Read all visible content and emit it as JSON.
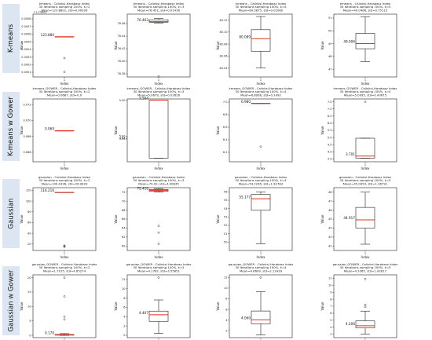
{
  "rows": [
    {
      "label": "K-means"
    },
    {
      "label": "K-means w Gower"
    },
    {
      "label": "Gaussian"
    },
    {
      "label": "Gaussian w Gower"
    }
  ],
  "chart_data": [
    {
      "type": "box",
      "row": 0,
      "col": 0,
      "title": [
        "kmeans - Calinksi-Harabasz Index",
        "30 iterations sampling 100%, k=2",
        "Mean=123.8801, std=0.00026"
      ],
      "offset_label": "+1.238e2",
      "xlabel": "Index",
      "ylabel": "Value",
      "x_tick": "1",
      "ylim": [
        123.88008,
        123.88058
      ],
      "ticks": [
        "0.0008",
        "0.0007",
        "0.0006",
        "0.0005",
        "0.0004",
        "0.0003",
        "0.0002",
        "0.0001"
      ],
      "box": {
        "q1": 123.8804,
        "median": 123.8804,
        "q3": 123.8804,
        "whisker_low": 123.8804,
        "whisker_high": 123.8804
      },
      "outliers": [
        123.88023,
        123.88012
      ],
      "median_label": "123.880"
    },
    {
      "type": "box",
      "row": 0,
      "col": 1,
      "title": [
        "kmeans - Calinksi-Harabasz Index",
        "30 iterations sampling 100%, k=3",
        "Mean=76.451, std=0.01436"
      ],
      "xlabel": "Index",
      "ylabel": "Value",
      "x_tick": "1",
      "ylim": [
        76.375,
        76.475
      ],
      "ticks": [
        "76.46",
        "76.44",
        "76.42",
        "76.40",
        "76.38"
      ],
      "box": {
        "q1": 76.462,
        "median": 76.463,
        "q3": 76.466,
        "whisker_low": 76.461,
        "whisker_high": 76.468
      },
      "outliers": [
        76.376
      ],
      "median_label": "76.463"
    },
    {
      "type": "box",
      "row": 0,
      "col": 2,
      "title": [
        "kmeans - Calinksi-Harabasz Index",
        "30 iterations sampling 100%, k=4",
        "Mean=80.0875, std=0.02080"
      ],
      "xlabel": "Index",
      "ylabel": "Value",
      "x_tick": "1",
      "ylim": [
        80.025,
        80.13
      ],
      "ticks": [
        "80.12",
        "80.10",
        "80.08",
        "80.06",
        "80.04"
      ],
      "box": {
        "q1": 80.068,
        "median": 80.089,
        "q3": 80.104,
        "whisker_low": 80.04,
        "whisker_high": 80.126
      },
      "outliers": [],
      "median_label": "80.089"
    },
    {
      "type": "box",
      "row": 0,
      "col": 3,
      "title": [
        "kmeans - Calinksi-Harabasz Index",
        "30 iterations sampling 100%, k=5",
        "Mean=49.0466, std=0.75115"
      ],
      "xlabel": "Index",
      "ylabel": "Value",
      "x_tick": "1",
      "ylim": [
        46.4,
        51.3
      ],
      "ticks": [
        "51",
        "50",
        "49",
        "48",
        "47"
      ],
      "box": {
        "q1": 48.6,
        "median": 49.006,
        "q3": 49.8,
        "whisker_low": 47.6,
        "whisker_high": 51.1
      },
      "outliers": [],
      "median_label": "49.006"
    },
    {
      "type": "box",
      "row": 1,
      "col": 0,
      "title": [
        "kmeans_GOWER - Calinksi-Harabasz Index",
        "30 iterations sampling 100%, k=2",
        "Mean=0.0687, std=0.0"
      ],
      "xlabel": "Index",
      "ylabel": "Value",
      "x_tick": "1",
      "ylim": [
        0.0648,
        0.0727
      ],
      "ticks": [
        "0.072",
        "0.070",
        "0.068",
        "0.066"
      ],
      "box": {
        "q1": 0.0687,
        "median": 0.0687,
        "q3": 0.0687,
        "whisker_low": 0.0687,
        "whisker_high": 0.0687
      },
      "outliers": [],
      "median_label": "0.069"
    },
    {
      "type": "box",
      "row": 1,
      "col": 1,
      "title": [
        "kmeans_GOWER - Calinksi-Harabasz Index",
        "30 iterations sampling 100%, k=3",
        "Mean=5.0679, std=0.02626"
      ],
      "xlabel": "Index",
      "ylabel": "Value",
      "x_tick": "1",
      "ylim": [
        4.64,
        5.52
      ],
      "ticks": [
        "5.50",
        "5.00",
        "4.97",
        "4.96"
      ],
      "box": {
        "q1": 4.69,
        "median": 5.504,
        "q3": 5.504,
        "whisker_low": 4.69,
        "whisker_high": 5.504
      },
      "outliers": [],
      "median_label": "5.504"
    },
    {
      "type": "box",
      "row": 1,
      "col": 2,
      "title": [
        "kmeans_GOWER - Calinksi-Harabasz Index",
        "30 iterations sampling 100%, k=4",
        "Mean=6.8996, std=0.1492"
      ],
      "xlabel": "Index",
      "ylabel": "Value",
      "x_tick": "1",
      "ylim": [
        6.05,
        7.05
      ],
      "ticks": [
        "7.0",
        "6.8",
        "6.6",
        "6.4",
        "6.2"
      ],
      "box": {
        "q1": 6.98,
        "median": 6.98,
        "q3": 6.98,
        "whisker_low": 6.98,
        "whisker_high": 6.98
      },
      "outliers": [
        6.29
      ],
      "median_label": "6.980"
    },
    {
      "type": "box",
      "row": 1,
      "col": 3,
      "title": [
        "kmeans_GOWER - Calinksi-Harabasz Index",
        "30 iterations sampling 100%, k=5",
        "Mean=5.0995, std=0.43675"
      ],
      "xlabel": "Index",
      "ylabel": "Value",
      "x_tick": "1",
      "ylim": [
        3.3,
        7.7
      ],
      "ticks": [
        "7.5",
        "7.0",
        "6.5",
        "6.0",
        "5.5",
        "5.0",
        "4.5",
        "4.0",
        "3.5"
      ],
      "box": {
        "q1": 3.55,
        "median": 3.701,
        "q3": 4.95,
        "whisker_low": 3.55,
        "whisker_high": 4.95
      },
      "outliers": [
        7.5
      ],
      "median_label": "3.701"
    },
    {
      "type": "box",
      "row": 2,
      "col": 0,
      "title": [
        "gaussian - Calinksi-Harabasz Index",
        "30 iterations sampling 100%, k=2",
        "Mean=109.0436, std=26.0629"
      ],
      "xlabel": "Index",
      "ylabel": "Value",
      "x_tick": "1",
      "ylim": [
        8,
        125
      ],
      "ticks": [
        "120",
        "100",
        "80",
        "60",
        "40",
        "20"
      ],
      "box": {
        "q1": 116.216,
        "median": 116.216,
        "q3": 116.216,
        "whisker_low": 116.216,
        "whisker_high": 116.216
      },
      "outliers": [
        17,
        16,
        15
      ],
      "median_label": "116.216"
    },
    {
      "type": "box",
      "row": 2,
      "col": 1,
      "title": [
        "gaussian - Calinksi-Harabasz Index",
        "30 iterations sampling 100%, k=3",
        "Mean=70.93, std=4.00835"
      ],
      "xlabel": "Index",
      "ylabel": "Value",
      "x_tick": "1",
      "ylim": [
        59,
        73
      ],
      "ticks": [
        "72",
        "70",
        "68",
        "66",
        "64",
        "62",
        "60"
      ],
      "box": {
        "q1": 72.2,
        "median": 72.41,
        "q3": 72.6,
        "whisker_low": 72.0,
        "whisker_high": 72.8
      },
      "outliers": [
        64.5,
        63,
        60.5
      ],
      "median_label": "72.410"
    },
    {
      "type": "box",
      "row": 2,
      "col": 2,
      "title": [
        "gaussian - Calinksi-Harabasz Index",
        "30 iterations sampling 100%, k=4",
        "Mean=54.2265, std=1.92783"
      ],
      "xlabel": "Index",
      "ylabel": "Value",
      "x_tick": "1",
      "ylim": [
        49,
        56.5
      ],
      "ticks": [
        "56",
        "55",
        "54",
        "53",
        "52",
        "51",
        "50"
      ],
      "box": {
        "q1": 53.8,
        "median": 55.177,
        "q3": 55.7,
        "whisker_low": 49.8,
        "whisker_high": 56.0
      },
      "outliers": [],
      "median_label": "55.177"
    },
    {
      "type": "box",
      "row": 2,
      "col": 3,
      "title": [
        "gaussian - Calinksi-Harabasz Index",
        "30 iterations sampling 100%, k=5",
        "Mean=45.0953, std=1.36791"
      ],
      "xlabel": "Index",
      "ylabel": "Value",
      "x_tick": "1",
      "ylim": [
        41.5,
        48.5
      ],
      "ticks": [
        "48",
        "47",
        "46",
        "45",
        "44",
        "43",
        "42"
      ],
      "box": {
        "q1": 44.0,
        "median": 44.917,
        "q3": 46.3,
        "whisker_low": 42.2,
        "whisker_high": 48.0
      },
      "outliers": [],
      "median_label": "44.917"
    },
    {
      "type": "box",
      "row": 3,
      "col": 0,
      "title": [
        "gaussian_GOWER - Calinksi-Harabasz Index",
        "30 iterations sampling 100%, k=2",
        "Mean=1.7015, std=4.65274"
      ],
      "xlabel": "Index",
      "ylabel": "Value",
      "x_tick": "1",
      "ylim": [
        -0.8,
        21
      ],
      "ticks": [
        "20",
        "15",
        "10",
        "5",
        "0"
      ],
      "box": {
        "q1": 0.05,
        "median": 0.17,
        "q3": 0.3,
        "whisker_low": 0.0,
        "whisker_high": 0.6
      },
      "outliers": [
        20,
        13.5,
        6.5,
        5.5
      ],
      "median_label": "0.170"
    },
    {
      "type": "box",
      "row": 3,
      "col": 1,
      "title": [
        "gaussian_GOWER - Calinksi-Harabasz Index",
        "30 iterations sampling 100%, k=3",
        "Mean=4.1782, std=3.55851"
      ],
      "xlabel": "Index",
      "ylabel": "Value",
      "x_tick": "1",
      "ylim": [
        -0.5,
        13
      ],
      "ticks": [
        "12",
        "10",
        "8",
        "6",
        "4",
        "2",
        "0"
      ],
      "box": {
        "q1": 3.0,
        "median": 4.407,
        "q3": 5.2,
        "whisker_low": 0.4,
        "whisker_high": 7.6
      },
      "outliers": [
        12.4
      ],
      "median_label": "4.407"
    },
    {
      "type": "box",
      "row": 3,
      "col": 2,
      "title": [
        "gaussian_GOWER - Calinksi-Harabasz Index",
        "30 iterations sampling 100%, k=4",
        "Mean=4.6609, std=2.12439"
      ],
      "xlabel": "Index",
      "ylabel": "Value",
      "x_tick": "1",
      "ylim": [
        0.7,
        12.5
      ],
      "ticks": [
        "12",
        "10",
        "8",
        "6",
        "4",
        "2"
      ],
      "box": {
        "q1": 3.3,
        "median": 4.06,
        "q3": 5.7,
        "whisker_low": 1.2,
        "whisker_high": 9.3
      },
      "outliers": [
        12.0
      ],
      "median_label": "4.060"
    },
    {
      "type": "box",
      "row": 3,
      "col": 3,
      "title": [
        "gaussian_GOWER - Calinksi-Harabasz Index",
        "30 iterations sampling 100%, k=5",
        "Mean=4.3365, std=1.42817"
      ],
      "xlabel": "Index",
      "ylabel": "Value",
      "x_tick": "1",
      "ylim": [
        2.5,
        11.5
      ],
      "ticks": [
        "11",
        "10",
        "9",
        "8",
        "7",
        "6",
        "5",
        "4",
        "3"
      ],
      "box": {
        "q1": 3.9,
        "median": 4.206,
        "q3": 4.9,
        "whisker_low": 3.0,
        "whisker_high": 6.3
      },
      "outliers": [
        7.2,
        6.9,
        10.9
      ],
      "median_label": "4.206"
    }
  ]
}
